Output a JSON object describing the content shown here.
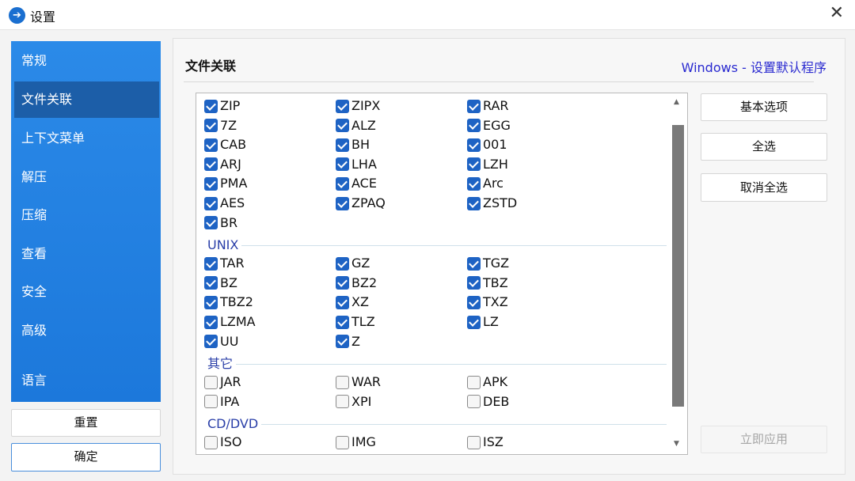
{
  "window": {
    "title": "设置",
    "close_icon": "close-icon"
  },
  "sidebar": {
    "items": [
      {
        "label": "常规"
      },
      {
        "label": "文件关联",
        "selected": true
      },
      {
        "label": "上下文菜单"
      },
      {
        "label": "解压"
      },
      {
        "label": "压缩"
      },
      {
        "label": "查看"
      },
      {
        "label": "安全"
      },
      {
        "label": "高级"
      },
      {
        "label": "语言"
      }
    ]
  },
  "footer": {
    "reset": "重置",
    "ok": "确定"
  },
  "main": {
    "title": "文件关联",
    "link": "Windows - 设置默认程序"
  },
  "actions": {
    "basic": "基本选项",
    "select_all": "全选",
    "deselect_all": "取消全选",
    "apply": "立即应用"
  },
  "groups": [
    {
      "name": "",
      "items": [
        [
          "ZIP",
          true
        ],
        [
          "ZIPX",
          true
        ],
        [
          "RAR",
          true
        ],
        [
          "7Z",
          true
        ],
        [
          "ALZ",
          true
        ],
        [
          "EGG",
          true
        ],
        [
          "CAB",
          true
        ],
        [
          "BH",
          true
        ],
        [
          "001",
          true
        ],
        [
          "ARJ",
          true
        ],
        [
          "LHA",
          true
        ],
        [
          "LZH",
          true
        ],
        [
          "PMA",
          true
        ],
        [
          "ACE",
          true
        ],
        [
          "Arc",
          true
        ],
        [
          "AES",
          true
        ],
        [
          "ZPAQ",
          true
        ],
        [
          "ZSTD",
          true
        ],
        [
          "BR",
          true
        ]
      ]
    },
    {
      "name": "UNIX",
      "items": [
        [
          "TAR",
          true
        ],
        [
          "GZ",
          true
        ],
        [
          "TGZ",
          true
        ],
        [
          "BZ",
          true
        ],
        [
          "BZ2",
          true
        ],
        [
          "TBZ",
          true
        ],
        [
          "TBZ2",
          true
        ],
        [
          "XZ",
          true
        ],
        [
          "TXZ",
          true
        ],
        [
          "LZMA",
          true
        ],
        [
          "TLZ",
          true
        ],
        [
          "LZ",
          true
        ],
        [
          "UU",
          true
        ],
        [
          "Z",
          true
        ]
      ]
    },
    {
      "name": "其它",
      "items": [
        [
          "JAR",
          false
        ],
        [
          "WAR",
          false
        ],
        [
          "APK",
          false
        ],
        [
          "IPA",
          false
        ],
        [
          "XPI",
          false
        ],
        [
          "DEB",
          false
        ]
      ]
    },
    {
      "name": "CD/DVD",
      "items": [
        [
          "ISO",
          false
        ],
        [
          "IMG",
          false
        ],
        [
          "ISZ",
          false
        ],
        [
          "",
          false
        ],
        [
          "",
          false
        ],
        [
          "",
          false
        ]
      ]
    }
  ],
  "colors": {
    "accent": "#1e78db",
    "selected": "#1c5ea8",
    "link": "#2a2ad0"
  }
}
